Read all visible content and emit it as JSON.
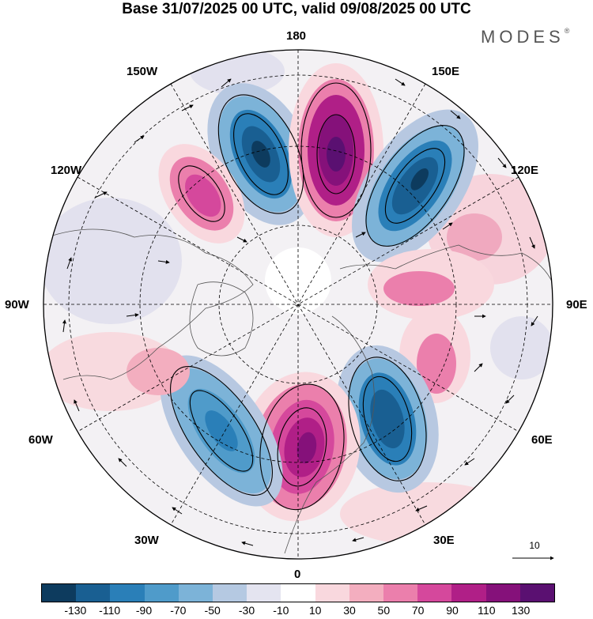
{
  "title": "Base 31/07/2025 00 UTC, valid 09/08/2025 00 UTC",
  "logo": "MODES",
  "logo_mark": "®",
  "longitude_labels": {
    "top": "180",
    "top_left": "150W",
    "top_right": "150E",
    "upper_left": "120W",
    "upper_right": "120E",
    "left": "90W",
    "right": "90E",
    "lower_left": "60W",
    "lower_right": "60E",
    "bottom_left": "30W",
    "bottom_right": "30E",
    "bottom": "0"
  },
  "vector_key": {
    "label": "10"
  },
  "colorbar": {
    "colors": [
      "#0d3b5e",
      "#195f92",
      "#2a7fb8",
      "#4f9bca",
      "#7cb3d8",
      "#b5c9e2",
      "#e4e4f0",
      "#ffffff",
      "#f9d8de",
      "#f3aebf",
      "#eb7fac",
      "#d5489c",
      "#b01f87",
      "#85117a",
      "#5a1071"
    ],
    "ticks": [
      "-130",
      "-110",
      "-90",
      "-70",
      "-50",
      "-30",
      "-10",
      "10",
      "30",
      "50",
      "70",
      "90",
      "110",
      "130"
    ]
  }
}
